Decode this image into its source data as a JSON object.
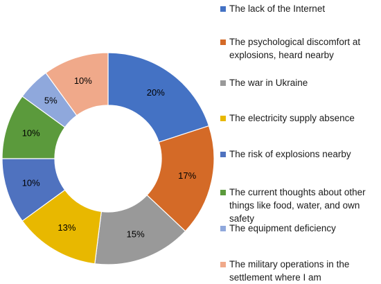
{
  "chart_data": {
    "type": "pie",
    "donut": true,
    "legend_position": "right",
    "categories": [
      "The lack of the Internet",
      "The psychological discomfort at explosions, heard nearby",
      "The war in Ukraine",
      "The electricity supply absence",
      "The risk of explosions nearby",
      "The current thoughts about other things like food, water, and own safety",
      "The equipment deficiency",
      "The military operations in the settlement where I am"
    ],
    "values": [
      20,
      17,
      15,
      13,
      10,
      10,
      5,
      10
    ],
    "value_labels": [
      "20%",
      "17%",
      "15%",
      "13%",
      "10%",
      "10%",
      "5%",
      "10%"
    ],
    "colors": [
      "#4472c4",
      "#d46a27",
      "#999999",
      "#e8b800",
      "#4f72bf",
      "#5b9a3c",
      "#8fa8dc",
      "#f0a98a"
    ]
  }
}
